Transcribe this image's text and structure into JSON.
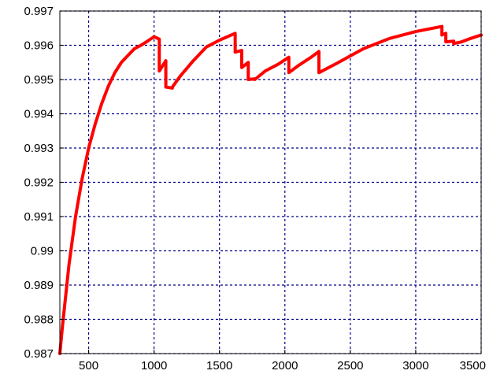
{
  "chart_data": {
    "type": "line",
    "title": "",
    "xlabel": "",
    "ylabel": "",
    "xlim": [
      280,
      3500
    ],
    "ylim": [
      0.987,
      0.997
    ],
    "xticks": [
      500,
      1000,
      1500,
      2000,
      2500,
      3000,
      3500
    ],
    "yticks": [
      0.987,
      0.988,
      0.989,
      0.99,
      0.991,
      0.992,
      0.993,
      0.994,
      0.995,
      0.996,
      0.997
    ],
    "xtick_labels": [
      "500",
      "1000",
      "1500",
      "2000",
      "2500",
      "3000",
      "3500"
    ],
    "ytick_labels": [
      "0.987",
      "0.988",
      "0.989",
      "0.99",
      "0.991",
      "0.992",
      "0.993",
      "0.994",
      "0.995",
      "0.996",
      "0.997"
    ],
    "grid": true,
    "series": [
      {
        "color": "#ff0000",
        "x": [
          280,
          300,
          350,
          400,
          450,
          500,
          550,
          600,
          650,
          700,
          750,
          800,
          850,
          900,
          950,
          1000,
          1040,
          1040,
          1090,
          1090,
          1140,
          1140,
          1200,
          1300,
          1400,
          1500,
          1620,
          1620,
          1670,
          1670,
          1720,
          1720,
          1770,
          1770,
          1850,
          1950,
          2030,
          2030,
          2100,
          2200,
          2260,
          2260,
          2400,
          2600,
          2800,
          3000,
          3200,
          3200,
          3230,
          3230,
          3290,
          3290,
          3350,
          3420,
          3500
        ],
        "y": [
          0.987,
          0.9878,
          0.9896,
          0.991,
          0.9921,
          0.993,
          0.9937,
          0.9943,
          0.9948,
          0.9952,
          0.9955,
          0.9957,
          0.9959,
          0.996,
          0.99612,
          0.99625,
          0.99618,
          0.99525,
          0.99555,
          0.99478,
          0.99475,
          0.99478,
          0.9951,
          0.99555,
          0.99595,
          0.99615,
          0.99635,
          0.9958,
          0.99585,
          0.99535,
          0.9955,
          0.995,
          0.99502,
          0.995,
          0.99525,
          0.99545,
          0.99565,
          0.9952,
          0.9954,
          0.99565,
          0.99582,
          0.9952,
          0.99548,
          0.9959,
          0.9962,
          0.9964,
          0.99655,
          0.9963,
          0.99635,
          0.9961,
          0.99612,
          0.99605,
          0.9961,
          0.9962,
          0.9963
        ]
      }
    ]
  },
  "colors": {
    "grid": "#00008b",
    "axis": "#000000",
    "background": "#ffffff"
  }
}
